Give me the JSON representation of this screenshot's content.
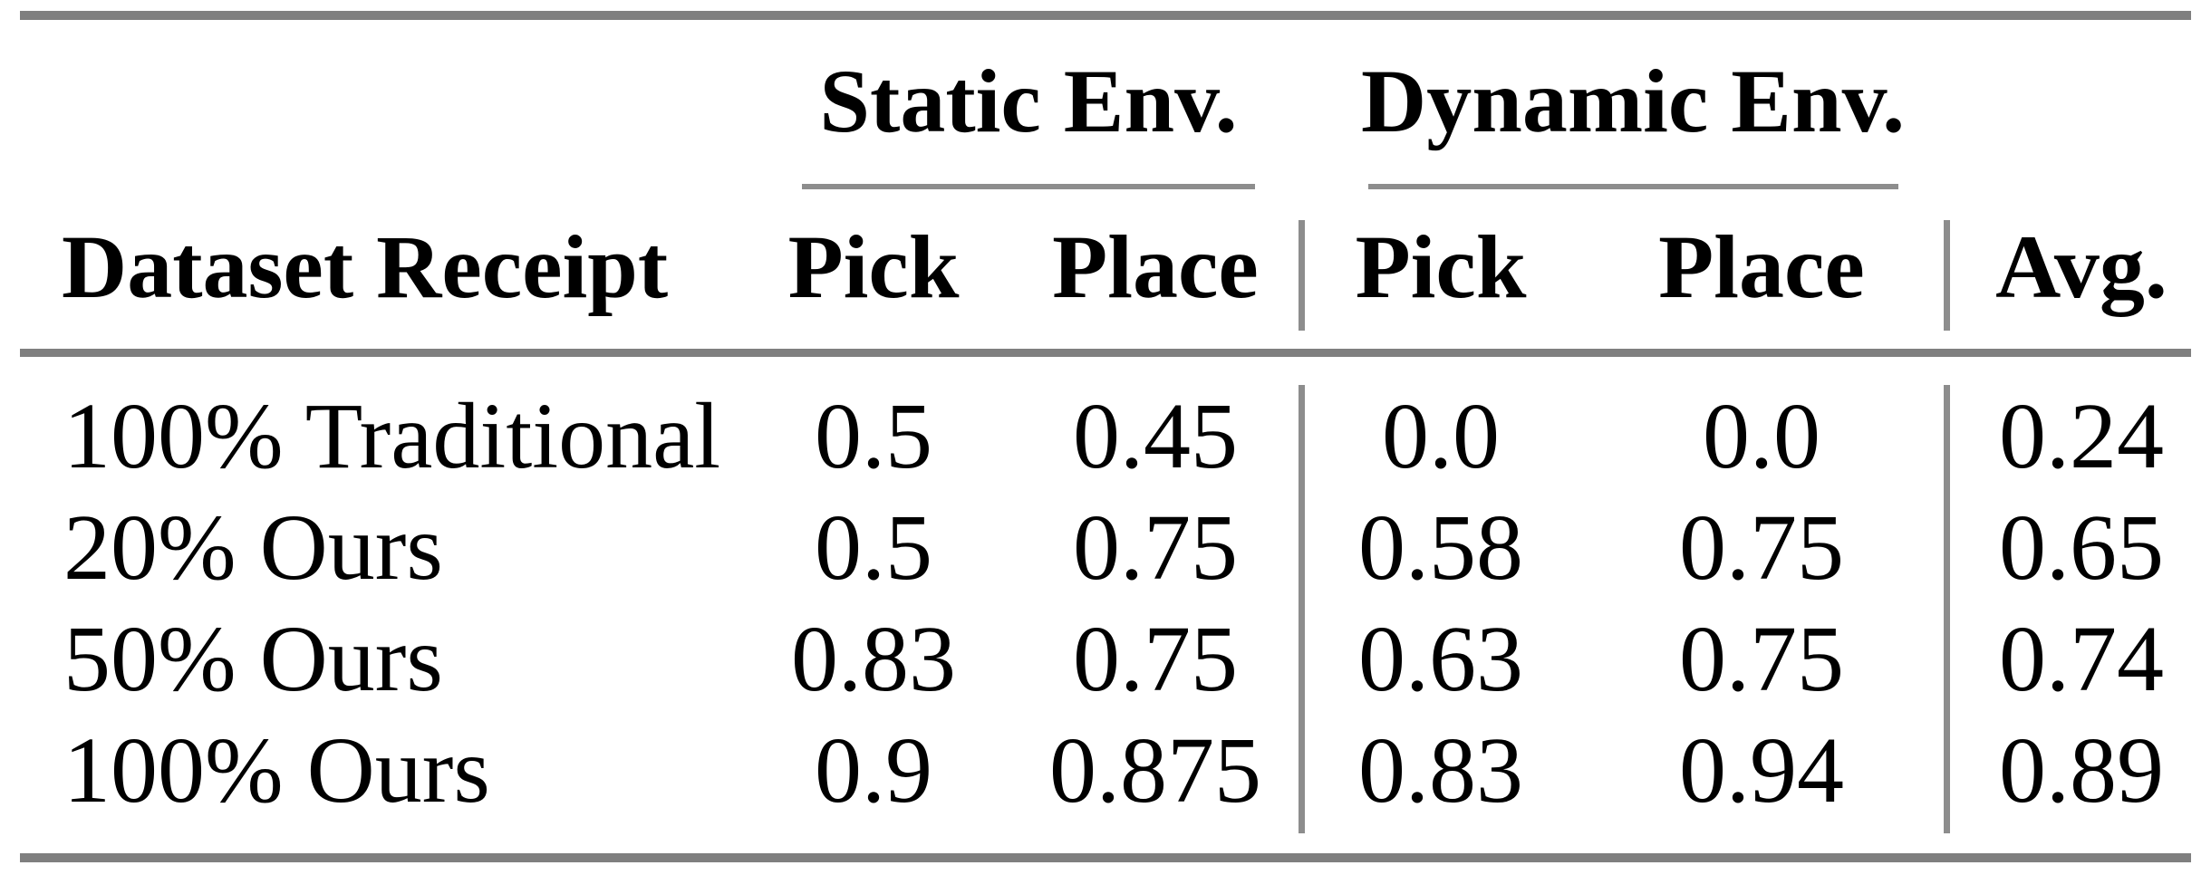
{
  "table": {
    "col_groups": [
      {
        "label": "Static Env."
      },
      {
        "label": "Dynamic Env."
      }
    ],
    "headers": {
      "row_label": "Dataset Receipt",
      "static_pick": "Pick",
      "static_place": "Place",
      "dynamic_pick": "Pick",
      "dynamic_place": "Place",
      "avg": "Avg."
    },
    "rows": [
      {
        "label": "100% Traditional",
        "static_pick": "0.5",
        "static_place": "0.45",
        "dynamic_pick": "0.0",
        "dynamic_place": "0.0",
        "avg": "0.24"
      },
      {
        "label": "20% Ours",
        "static_pick": "0.5",
        "static_place": "0.75",
        "dynamic_pick": "0.58",
        "dynamic_place": "0.75",
        "avg": "0.65"
      },
      {
        "label": "50% Ours",
        "static_pick": "0.83",
        "static_place": "0.75",
        "dynamic_pick": "0.63",
        "dynamic_place": "0.75",
        "avg": "0.74"
      },
      {
        "label": "100% Ours",
        "static_pick": "0.9",
        "static_place": "0.875",
        "dynamic_pick": "0.83",
        "dynamic_place": "0.94",
        "avg": "0.89"
      }
    ],
    "colors": {
      "thick_rule": "#7f7f7f",
      "thin_rule": "#8d8d8d",
      "text": "#000000",
      "background": "#ffffff"
    }
  },
  "chart_data": {
    "type": "table",
    "column_groups": [
      "Static Env.",
      "Dynamic Env."
    ],
    "columns": [
      "Dataset Receipt",
      "Static Env. Pick",
      "Static Env. Place",
      "Dynamic Env. Pick",
      "Dynamic Env. Place",
      "Avg."
    ],
    "rows": [
      [
        "100% Traditional",
        0.5,
        0.45,
        0.0,
        0.0,
        0.24
      ],
      [
        "20% Ours",
        0.5,
        0.75,
        0.58,
        0.75,
        0.65
      ],
      [
        "50% Ours",
        0.83,
        0.75,
        0.63,
        0.75,
        0.74
      ],
      [
        "100% Ours",
        0.9,
        0.875,
        0.83,
        0.94,
        0.89
      ]
    ]
  }
}
